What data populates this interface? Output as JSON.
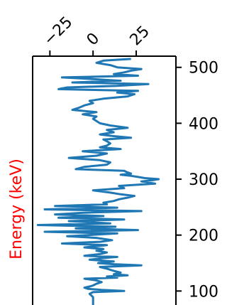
{
  "chart_data": {
    "type": "line",
    "orientation": "vertical-signal",
    "ylabel": "Energy (keV)",
    "ylabel_color": "#ff0000",
    "line_color": "#1f77b4",
    "grid": false,
    "xlim": [
      -35,
      48
    ],
    "ylim": [
      75,
      520
    ],
    "xticks": [
      {
        "value": -25,
        "label": "−25"
      },
      {
        "value": 0,
        "label": "0"
      },
      {
        "value": 25,
        "label": "25"
      }
    ],
    "yticks": [
      {
        "value": 100,
        "label": "100"
      },
      {
        "value": 200,
        "label": "200"
      },
      {
        "value": 300,
        "label": "300"
      },
      {
        "value": 400,
        "label": "400"
      },
      {
        "value": 500,
        "label": "500"
      }
    ],
    "series": [
      {
        "energy": [
          75,
          89,
          95,
          98,
          100,
          102,
          104,
          106,
          108,
          110,
          113,
          116,
          119,
          122,
          124,
          126,
          128,
          130,
          133,
          136,
          140,
          143,
          146,
          148,
          150,
          153,
          156,
          159,
          161,
          163,
          166,
          169,
          172,
          175,
          178,
          182,
          185,
          188,
          191,
          195,
          198,
          200,
          203,
          206,
          209,
          212,
          215,
          218,
          221,
          225,
          228,
          231,
          234,
          237,
          240,
          243,
          246,
          249,
          252,
          255,
          258,
          261,
          264,
          267,
          270,
          273,
          276,
          280,
          284,
          288,
          292,
          296,
          298,
          300,
          302,
          304,
          306,
          308,
          310,
          312,
          315,
          318,
          322,
          326,
          330,
          334,
          338,
          342,
          346,
          350,
          354,
          357,
          360,
          364,
          368,
          371,
          374,
          377,
          380,
          384,
          388,
          392,
          396,
          400,
          404,
          408,
          412,
          416,
          420,
          424,
          428,
          432,
          436,
          440,
          444,
          448,
          452,
          455,
          458,
          461,
          464,
          467,
          470,
          473,
          476,
          479,
          482,
          485,
          488,
          491,
          494,
          497,
          500,
          504,
          508,
          512,
          515
        ],
        "signal": [
          0,
          0,
          -2,
          0,
          18,
          5,
          -3,
          -5,
          -2,
          0,
          2,
          5,
          2,
          -5,
          14,
          8,
          20,
          12,
          16,
          12,
          8,
          4,
          28,
          12,
          3,
          12,
          -2,
          6,
          14,
          -5,
          4,
          8,
          2,
          6,
          -5,
          8,
          -18,
          4,
          11,
          2,
          -15,
          -3,
          14,
          -28,
          26,
          -10,
          13,
          -32,
          10,
          -14,
          18,
          -20,
          6,
          -22,
          -6,
          28,
          -28,
          14,
          -22,
          8,
          6,
          12,
          15,
          20,
          24,
          16,
          10,
          0,
          18,
          15,
          36,
          28,
          34,
          38,
          30,
          26,
          22,
          16,
          22,
          20,
          18,
          -10,
          -5,
          8,
          10,
          4,
          -14,
          2,
          8,
          -6,
          16,
          4,
          8,
          10,
          8,
          6,
          22,
          12,
          4,
          12,
          8,
          20,
          10,
          4,
          2,
          0,
          2,
          -6,
          2,
          -12,
          -8,
          -5,
          0,
          -2,
          6,
          20,
          24,
          14,
          26,
          -20,
          -15,
          14,
          32,
          -12,
          16,
          0,
          -18,
          26,
          12,
          18,
          22,
          28,
          14,
          10,
          2,
          6,
          22
        ]
      }
    ]
  }
}
